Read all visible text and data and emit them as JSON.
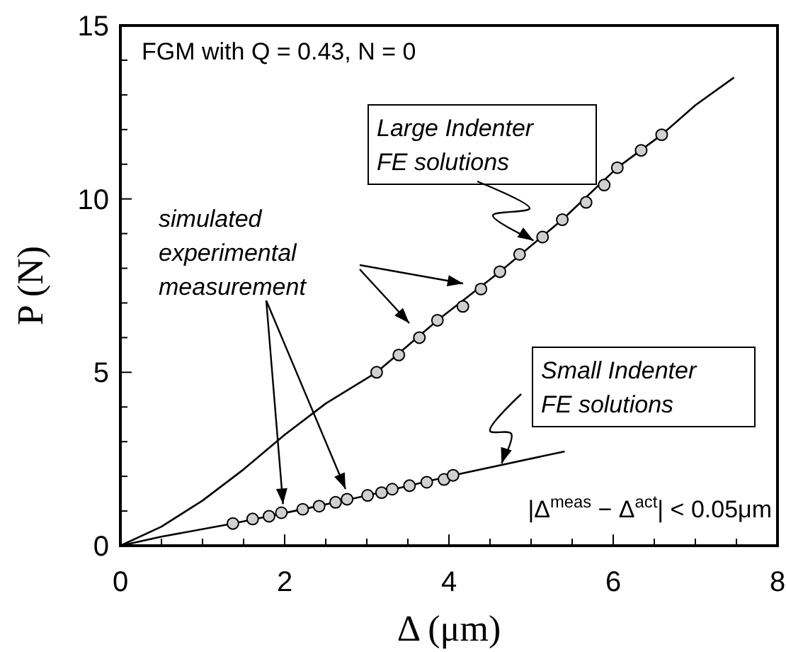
{
  "chart_data": {
    "type": "line",
    "xlabel": "Δ  (μm)",
    "ylabel": "P  (N)",
    "xlim": [
      0,
      8
    ],
    "ylim": [
      0,
      15
    ],
    "xticks": [
      0,
      2,
      4,
      6,
      8
    ],
    "yticks": [
      0,
      5,
      10,
      15
    ],
    "grid": false,
    "series": [
      {
        "color": "#000000",
        "marker": "none",
        "x": [
          0,
          0.5,
          1,
          1.5,
          2,
          2.5,
          3.12,
          3.86,
          4.62,
          5.38,
          6.05,
          6.59,
          7.0,
          7.47
        ],
        "values": [
          0,
          0.55,
          1.3,
          2.2,
          3.2,
          4.1,
          5.0,
          6.5,
          7.9,
          9.4,
          10.9,
          11.85,
          12.7,
          13.5
        ]
      },
      {
        "type": "scatter",
        "color": "#d0d0d0",
        "marker": "circle",
        "x": [
          3.12,
          3.39,
          3.64,
          3.86,
          4.17,
          4.39,
          4.62,
          4.86,
          5.14,
          5.38,
          5.67,
          5.89,
          6.05,
          6.34,
          6.59
        ],
        "values": [
          5.0,
          5.5,
          6.0,
          6.5,
          6.9,
          7.4,
          7.9,
          8.4,
          8.9,
          9.4,
          9.9,
          10.4,
          10.9,
          11.4,
          11.85
        ]
      },
      {
        "color": "#000000",
        "marker": "none",
        "x": [
          0,
          0.5,
          1.37,
          2.22,
          3.01,
          4.05,
          5.41
        ],
        "values": [
          0,
          0.26,
          0.64,
          1.05,
          1.45,
          2.03,
          2.72
        ]
      },
      {
        "type": "scatter",
        "color": "#d0d0d0",
        "marker": "circle",
        "x": [
          1.37,
          1.61,
          1.81,
          1.96,
          2.22,
          2.42,
          2.62,
          2.76,
          3.01,
          3.18,
          3.31,
          3.52,
          3.73,
          3.94,
          4.05
        ],
        "values": [
          0.64,
          0.77,
          0.85,
          0.95,
          1.05,
          1.14,
          1.25,
          1.34,
          1.45,
          1.53,
          1.63,
          1.73,
          1.83,
          1.91,
          2.03
        ]
      }
    ],
    "annotations": [
      "FGM with Q = 0.43, N = 0",
      {
        "text": "Large Indenter FE solutions",
        "x": 5.03,
        "y": 8.8
      },
      {
        "text": "simulated experimental measurement",
        "x": 1.98,
        "y": 1.2
      },
      {
        "text": "Small Indenter FE solutions",
        "x": 4.64,
        "y": 2.37
      },
      "|Δ$^{meas}$ − Δ$^{act}$| < 0.05μm"
    ]
  }
}
